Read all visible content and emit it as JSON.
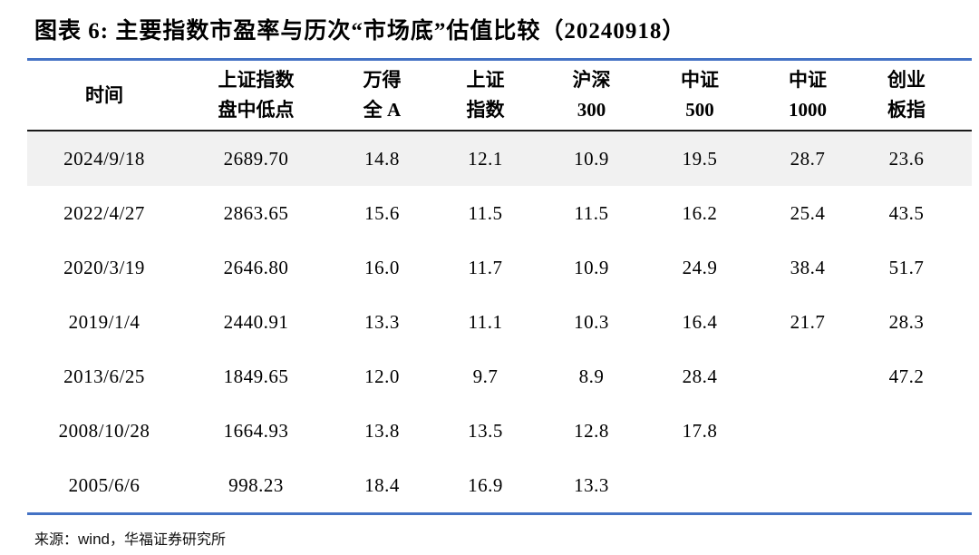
{
  "title": "图表 6: 主要指数市盈率与历次“市场底”估值比较（20240918）",
  "colors": {
    "accent": "#4472C4",
    "header_rule": "#1a1a1a",
    "row_highlight": "#F1F1F1"
  },
  "source": {
    "prefix": "来源：",
    "provider": "wind",
    "suffix": "，华福证券研究所"
  },
  "chart_data": {
    "type": "table",
    "title": "图表 6: 主要指数市盈率与历次“市场底”估值比较（20240918）",
    "columns": [
      {
        "key": "time",
        "line1": "时间",
        "line2": ""
      },
      {
        "key": "sse-low",
        "line1": "上证指数",
        "line2": "盘中低点"
      },
      {
        "key": "wind-all-a",
        "line1": "万得",
        "line2": "全 A"
      },
      {
        "key": "sse-index",
        "line1": "上证",
        "line2": "指数"
      },
      {
        "key": "csi300",
        "line1": "沪深",
        "line2": "300"
      },
      {
        "key": "csi500",
        "line1": "中证",
        "line2": "500"
      },
      {
        "key": "csi1000",
        "line1": "中证",
        "line2": "1000"
      },
      {
        "key": "chinext",
        "line1": "创业",
        "line2": "板指"
      }
    ],
    "rows": [
      [
        "2024/9/18",
        "2689.70",
        "14.8",
        "12.1",
        "10.9",
        "19.5",
        "28.7",
        "23.6"
      ],
      [
        "2022/4/27",
        "2863.65",
        "15.6",
        "11.5",
        "11.5",
        "16.2",
        "25.4",
        "43.5"
      ],
      [
        "2020/3/19",
        "2646.80",
        "16.0",
        "11.7",
        "10.9",
        "24.9",
        "38.4",
        "51.7"
      ],
      [
        "2019/1/4",
        "2440.91",
        "13.3",
        "11.1",
        "10.3",
        "16.4",
        "21.7",
        "28.3"
      ],
      [
        "2013/6/25",
        "1849.65",
        "12.0",
        "9.7",
        "8.9",
        "28.4",
        "",
        "47.2"
      ],
      [
        "2008/10/28",
        "1664.93",
        "13.8",
        "13.5",
        "12.8",
        "17.8",
        "",
        ""
      ],
      [
        "2005/6/6",
        "998.23",
        "18.4",
        "16.9",
        "13.3",
        "",
        "",
        ""
      ]
    ],
    "highlighted_row_index": 0
  }
}
